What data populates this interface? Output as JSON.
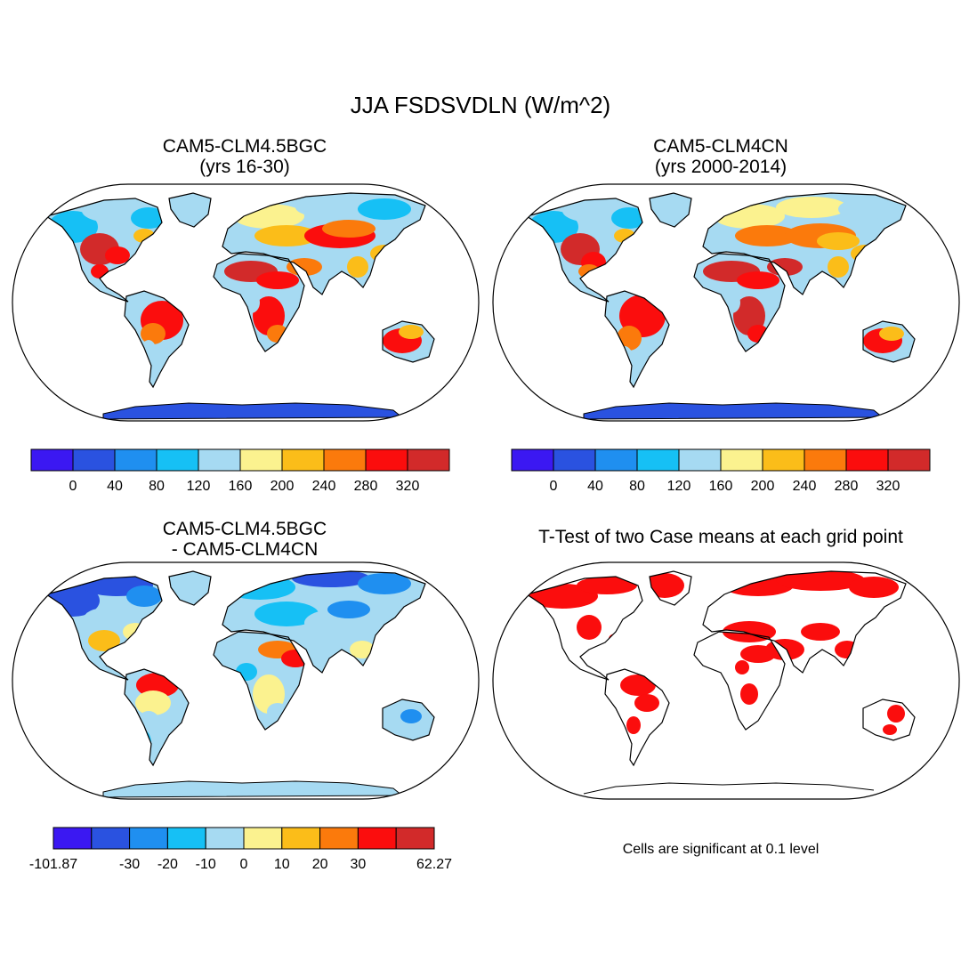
{
  "figure": {
    "title": "JJA FSDSVDLN (W/m^2)",
    "palette": [
      "#3b18f2",
      "#2a52e0",
      "#1f8ff0",
      "#16c0f5",
      "#a6daf2",
      "#fbf28f",
      "#fbbd19",
      "#fb7a0c",
      "#fb0d0d",
      "#d22a2a"
    ]
  },
  "panels": [
    {
      "id": "bgc",
      "title_line1": "CAM5-CLM4.5BGC",
      "title_line2": "(yrs 16-30)",
      "colorbar_labels": [
        "0",
        "40",
        "80",
        "120",
        "160",
        "200",
        "240",
        "280",
        "320"
      ],
      "antarctica_color": "#2a52e0"
    },
    {
      "id": "cn",
      "title_line1": "CAM5-CLM4CN",
      "title_line2": "(yrs 2000-2014)",
      "colorbar_labels": [
        "0",
        "40",
        "80",
        "120",
        "160",
        "200",
        "240",
        "280",
        "320"
      ],
      "antarctica_color": "#2a52e0"
    },
    {
      "id": "diff",
      "title_line1": "CAM5-CLM4.5BGC",
      "title_line2": "- CAM5-CLM4CN",
      "colorbar_labels": [
        "-101.87",
        "-30",
        "-20",
        "-10",
        "0",
        "10",
        "20",
        "30",
        "62.27"
      ],
      "antarctica_color": "#a6daf2"
    },
    {
      "id": "ttest",
      "title": "T-Test of two Case means at each grid point",
      "note": "Cells are significant at 0.1 level",
      "significant_color": "#fb0d0d"
    }
  ]
}
